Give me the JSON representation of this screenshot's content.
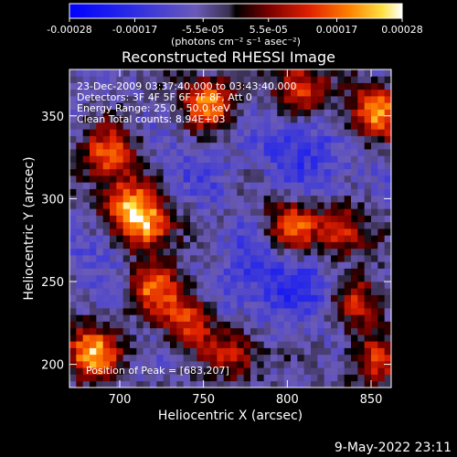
{
  "chart_data": {
    "type": "heatmap",
    "title": "Reconstructed RHESSI Image",
    "xlabel": "Heliocentric X (arcsec)",
    "ylabel": "Heliocentric Y (arcsec)",
    "xlim": [
      670,
      862
    ],
    "ylim": [
      186,
      378
    ],
    "x_ticks": [
      700,
      750,
      800,
      850
    ],
    "y_ticks": [
      200,
      250,
      300,
      350
    ],
    "colorbar": {
      "ticks": [
        "-0.00028",
        "-0.00017",
        "-5.5e-05",
        "5.5e-05",
        "0.00017",
        "0.00028"
      ],
      "tick_values": [
        -0.00028,
        -0.00017,
        -5.5e-05,
        5.5e-05,
        0.00017,
        0.00028
      ],
      "vmin": -0.00028,
      "vmax": 0.00028,
      "unit_label": "(photons cm⁻² s⁻¹ asec⁻²)"
    },
    "info_lines": [
      "23-Dec-2009 03:37:40.000 to 03:43:40.000",
      "Detectors: 3F 4F 5F 6F 7F 8F, Att 0",
      "Energy Range: 25.0 - 50.0 keV",
      "Clean      Total counts: 8.94E+03"
    ],
    "peak_label": "Position of Peak = [683,207]",
    "peak": [
      683,
      207
    ],
    "hot_spots": [
      {
        "x": 683,
        "y": 207,
        "value": 0.00028
      },
      {
        "x": 716,
        "y": 283,
        "value": 0.00025
      },
      {
        "x": 704,
        "y": 297,
        "value": 0.00021
      },
      {
        "x": 693,
        "y": 327,
        "value": 0.0002
      },
      {
        "x": 753,
        "y": 358,
        "value": 0.00023
      },
      {
        "x": 808,
        "y": 367,
        "value": 0.00019
      },
      {
        "x": 852,
        "y": 352,
        "value": 0.00026
      },
      {
        "x": 802,
        "y": 283,
        "value": 0.00022
      },
      {
        "x": 833,
        "y": 280,
        "value": 0.00017
      },
      {
        "x": 720,
        "y": 246,
        "value": 0.00019
      },
      {
        "x": 742,
        "y": 228,
        "value": 0.00018
      },
      {
        "x": 768,
        "y": 207,
        "value": 0.00015
      },
      {
        "x": 842,
        "y": 238,
        "value": 0.00012
      },
      {
        "x": 852,
        "y": 203,
        "value": 0.00014
      }
    ],
    "cold_spots": [
      {
        "x": 803,
        "y": 332,
        "value": -0.00017
      },
      {
        "x": 785,
        "y": 265,
        "value": -0.00015
      },
      {
        "x": 810,
        "y": 245,
        "value": -0.00016
      },
      {
        "x": 745,
        "y": 318,
        "value": -0.00012
      },
      {
        "x": 690,
        "y": 268,
        "value": -0.00013
      },
      {
        "x": 770,
        "y": 238,
        "value": -0.00012
      },
      {
        "x": 833,
        "y": 318,
        "value": -0.00011
      }
    ]
  },
  "timestamp": "9-May-2022 23:11"
}
